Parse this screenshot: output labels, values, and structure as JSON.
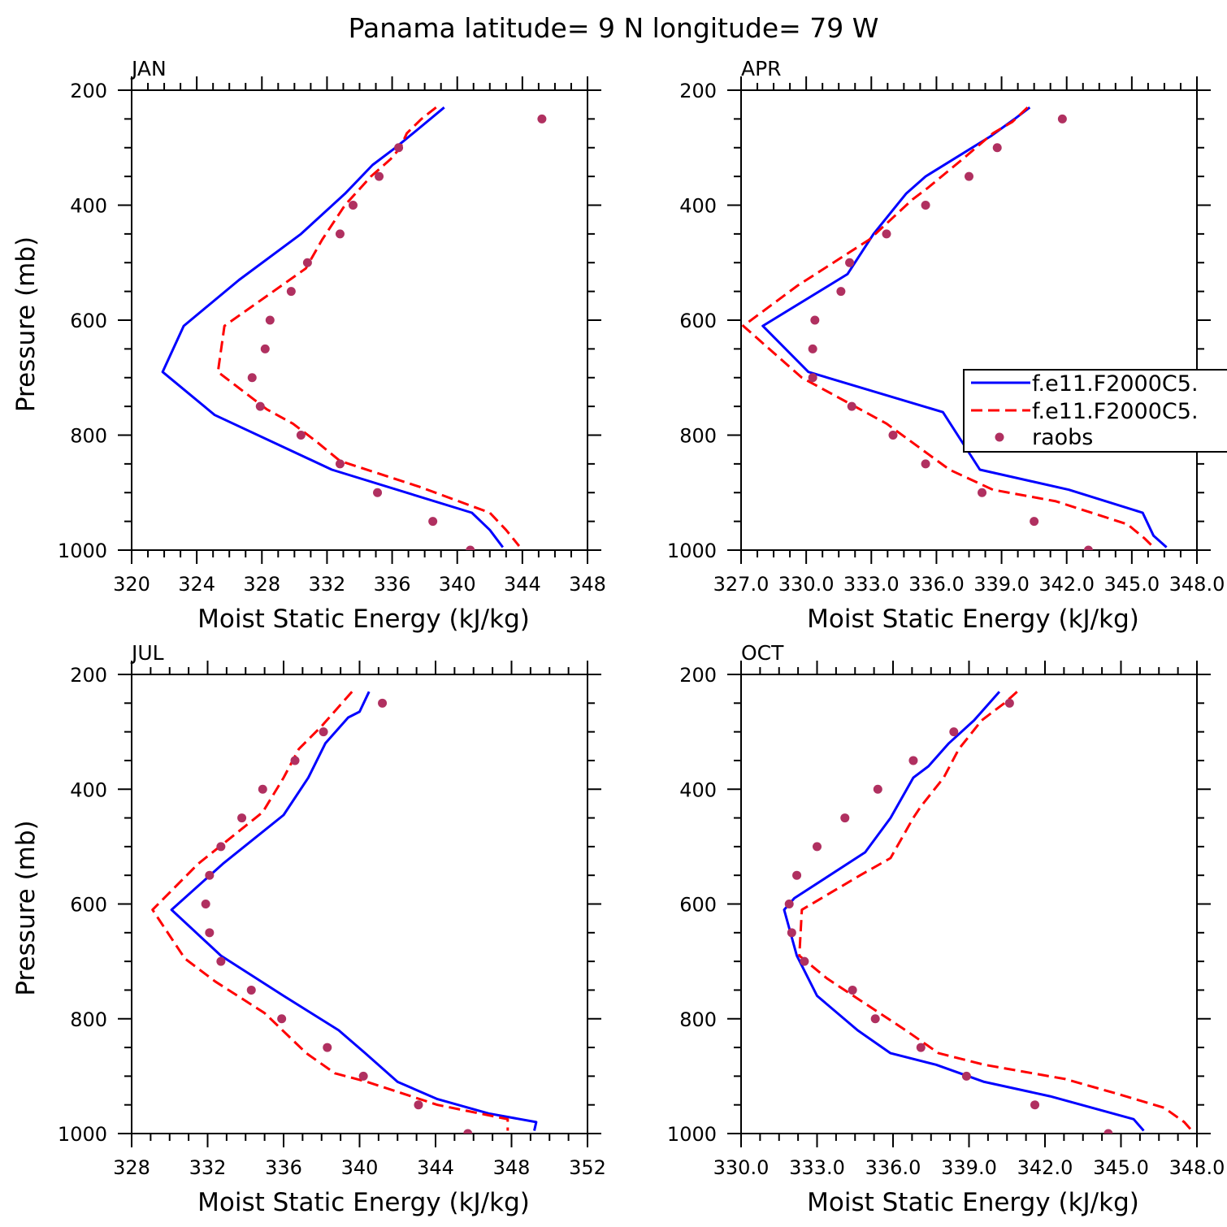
{
  "title": "Panama  latitude= 9 N longitude= 79 W",
  "legend": {
    "entries": [
      "f.e11.F2000C5.",
      "f.e11.F2000C5.",
      "raobs"
    ]
  },
  "chart_data": [
    {
      "type": "line",
      "title": "JAN",
      "xlabel": "Moist Static Energy (kJ/kg)",
      "ylabel": "Pressure (mb)",
      "xlim": [
        320,
        348
      ],
      "ylim": [
        200,
        1000
      ],
      "xtick_labels": [
        "320",
        "324",
        "328",
        "332",
        "336",
        "340",
        "344",
        "348"
      ],
      "ytick_labels": [
        "200",
        "400",
        "600",
        "800",
        "1000"
      ],
      "series": [
        {
          "name": "f.e11.F2000C5.",
          "style": "solid",
          "color": "#0000ff",
          "x": [
            339.2,
            337.5,
            336.2,
            334.8,
            333.1,
            330.4,
            326.6,
            323.2,
            321.9,
            325.1,
            332.3,
            340.9,
            342.0,
            342.8
          ],
          "y": [
            230,
            270,
            300,
            330,
            380,
            450,
            530,
            610,
            690,
            765,
            860,
            935,
            965,
            995
          ]
        },
        {
          "name": "f.e11.F2000C5.",
          "style": "dashed",
          "color": "#ff0000",
          "x": [
            338.7,
            337.8,
            336.9,
            336.5,
            335.9,
            334.7,
            333.1,
            331.7,
            330.7,
            325.7,
            325.3,
            328.3,
            329.9,
            331.3,
            332.8,
            337.7,
            342.0,
            343.0,
            343.8
          ],
          "y": [
            230,
            250,
            275,
            300,
            320,
            350,
            400,
            460,
            510,
            610,
            690,
            755,
            780,
            810,
            845,
            890,
            935,
            965,
            993
          ]
        },
        {
          "name": "raobs",
          "style": "dots",
          "color": "#b03060",
          "x": [
            345.2,
            336.4,
            335.2,
            333.6,
            332.8,
            330.8,
            329.8,
            328.5,
            328.2,
            327.4,
            327.9,
            330.4,
            332.8,
            335.1,
            338.5,
            340.8
          ],
          "y": [
            250,
            300,
            350,
            400,
            450,
            500,
            550,
            600,
            650,
            700,
            750,
            800,
            850,
            900,
            950,
            1000
          ]
        }
      ]
    },
    {
      "type": "line",
      "title": "APR",
      "xlabel": "Moist Static Energy (kJ/kg)",
      "ylabel": "",
      "xlim": [
        327,
        348
      ],
      "ylim": [
        200,
        1000
      ],
      "xtick_labels": [
        "327.0",
        "330.0",
        "333.0",
        "336.0",
        "339.0",
        "342.0",
        "345.0",
        "348.0"
      ],
      "ytick_labels": [
        "200",
        "400",
        "600",
        "800",
        "1000"
      ],
      "series": [
        {
          "name": "f.e11.F2000C5.",
          "style": "solid",
          "color": "#0000ff",
          "x": [
            340.3,
            339.6,
            338.5,
            335.5,
            334.6,
            333.1,
            331.9,
            328.0,
            330.1,
            336.3,
            338.0,
            342.1,
            345.5,
            346.0,
            346.6
          ],
          "y": [
            230,
            250,
            280,
            350,
            380,
            450,
            520,
            610,
            690,
            760,
            860,
            895,
            935,
            975,
            995
          ]
        },
        {
          "name": "f.e11.F2000C5.",
          "style": "dashed",
          "color": "#ff0000",
          "x": [
            340.2,
            339.5,
            338.6,
            337.2,
            335.6,
            334.9,
            332.9,
            329.6,
            327.1,
            329.8,
            333.7,
            336.6,
            338.6,
            341.5,
            344.8,
            345.6,
            346.0
          ],
          "y": [
            230,
            255,
            275,
            320,
            370,
            390,
            460,
            540,
            610,
            700,
            780,
            860,
            895,
            915,
            955,
            980,
            995
          ]
        },
        {
          "name": "raobs",
          "style": "dots",
          "color": "#b03060",
          "x": [
            341.8,
            338.8,
            337.5,
            335.5,
            333.7,
            332.0,
            331.6,
            330.4,
            330.3,
            330.3,
            332.1,
            334.0,
            335.5,
            338.1,
            340.5,
            343.0
          ],
          "y": [
            250,
            300,
            350,
            400,
            450,
            500,
            550,
            600,
            650,
            700,
            750,
            800,
            850,
            900,
            950,
            1000
          ]
        }
      ]
    },
    {
      "type": "line",
      "title": "JUL",
      "xlabel": "Moist Static Energy (kJ/kg)",
      "ylabel": "Pressure (mb)",
      "xlim": [
        328,
        352
      ],
      "ylim": [
        200,
        1000
      ],
      "xtick_labels": [
        "328",
        "332",
        "336",
        "340",
        "344",
        "348",
        "352"
      ],
      "ytick_labels": [
        "200",
        "400",
        "600",
        "800",
        "1000"
      ],
      "series": [
        {
          "name": "f.e11.F2000C5.",
          "style": "solid",
          "color": "#0000ff",
          "x": [
            340.5,
            340.0,
            339.4,
            338.2,
            337.3,
            336.0,
            332.8,
            330.1,
            332.7,
            336.0,
            338.9,
            340.3,
            342.0,
            344.1,
            346.8,
            349.3,
            349.2
          ],
          "y": [
            230,
            265,
            275,
            320,
            380,
            445,
            530,
            610,
            690,
            760,
            820,
            860,
            910,
            940,
            965,
            980,
            995
          ]
        },
        {
          "name": "f.e11.F2000C5.",
          "style": "dashed",
          "color": "#ff0000",
          "x": [
            339.6,
            338.0,
            336.8,
            336.0,
            334.9,
            331.5,
            329.1,
            330.8,
            332.4,
            335.0,
            337.2,
            338.7,
            340.4,
            344.1,
            347.8,
            347.8
          ],
          "y": [
            230,
            290,
            330,
            380,
            440,
            530,
            610,
            695,
            735,
            790,
            860,
            895,
            910,
            950,
            975,
            995
          ]
        },
        {
          "name": "raobs",
          "style": "dots",
          "color": "#b03060",
          "x": [
            341.2,
            338.1,
            336.6,
            334.9,
            333.8,
            332.7,
            332.1,
            331.9,
            332.1,
            332.7,
            334.3,
            335.9,
            338.3,
            340.2,
            343.1,
            345.7
          ],
          "y": [
            250,
            300,
            350,
            400,
            450,
            500,
            550,
            600,
            650,
            700,
            750,
            800,
            850,
            900,
            950,
            1000
          ]
        }
      ]
    },
    {
      "type": "line",
      "title": "OCT",
      "xlabel": "Moist Static Energy (kJ/kg)",
      "ylabel": "",
      "xlim": [
        330,
        348
      ],
      "ylim": [
        200,
        1000
      ],
      "xtick_labels": [
        "330.0",
        "333.0",
        "336.0",
        "339.0",
        "342.0",
        "345.0",
        "348.0"
      ],
      "ytick_labels": [
        "200",
        "400",
        "600",
        "800",
        "1000"
      ],
      "series": [
        {
          "name": "f.e11.F2000C5.",
          "style": "solid",
          "color": "#0000ff",
          "x": [
            340.2,
            339.2,
            338.2,
            337.4,
            336.8,
            335.9,
            334.9,
            332.1,
            331.7,
            332.2,
            333.0,
            334.6,
            335.9,
            337.7,
            339.6,
            342.2,
            345.5,
            345.9
          ],
          "y": [
            230,
            280,
            320,
            360,
            380,
            450,
            510,
            590,
            610,
            690,
            760,
            820,
            860,
            880,
            910,
            935,
            975,
            995
          ]
        },
        {
          "name": "f.e11.F2000C5.",
          "style": "dashed",
          "color": "#ff0000",
          "x": [
            340.9,
            340.4,
            339.5,
            338.6,
            338.0,
            337.1,
            336.8,
            335.9,
            334.7,
            332.4,
            332.3,
            333.4,
            336.5,
            337.8,
            339.6,
            342.8,
            344.8,
            346.7,
            347.5,
            347.8
          ],
          "y": [
            230,
            250,
            280,
            330,
            380,
            430,
            450,
            520,
            550,
            610,
            690,
            730,
            820,
            860,
            880,
            905,
            930,
            955,
            980,
            995
          ]
        },
        {
          "name": "raobs",
          "style": "dots",
          "color": "#b03060",
          "x": [
            340.6,
            338.4,
            336.8,
            335.4,
            334.1,
            333.0,
            332.2,
            331.9,
            332.0,
            332.5,
            334.4,
            335.3,
            337.1,
            338.9,
            341.6,
            344.5
          ],
          "y": [
            250,
            300,
            350,
            400,
            450,
            500,
            550,
            600,
            650,
            700,
            750,
            800,
            850,
            900,
            950,
            1000
          ]
        }
      ]
    }
  ]
}
